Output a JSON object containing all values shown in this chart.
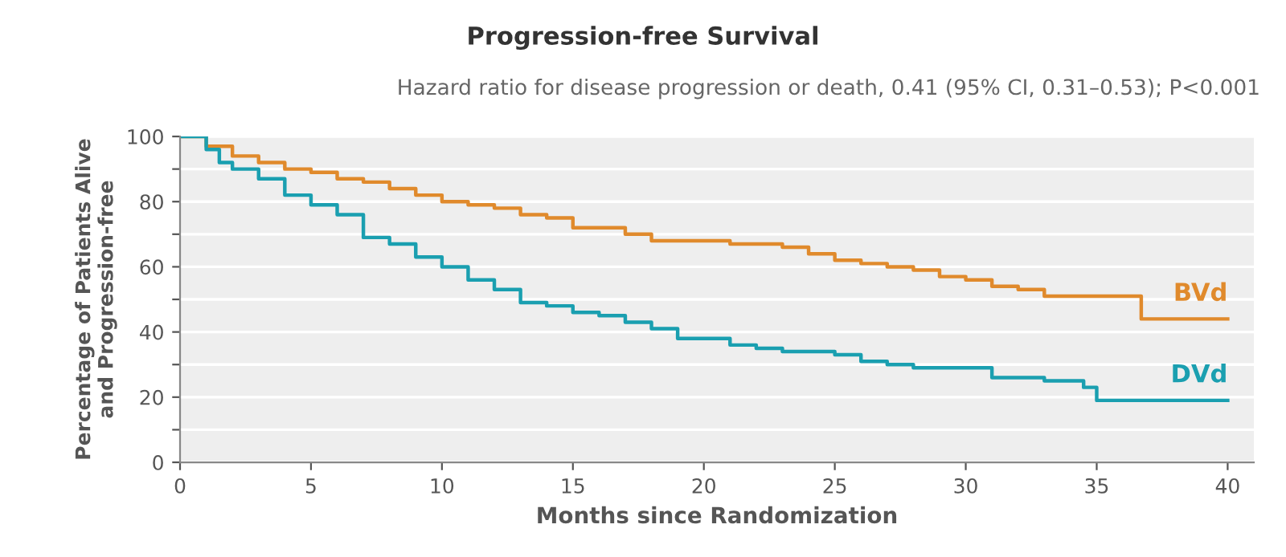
{
  "chart_data": {
    "type": "step",
    "title": "Progression-free Survival",
    "subtitle": "Hazard ratio for disease progression or death, 0.41 (95% CI, 0.31–0.53); P<0.001",
    "xlabel": "Months since Randomization",
    "ylabel": "Percentage of Patients Alive\nand Progression-free",
    "xlim": [
      0,
      41
    ],
    "xticks": [
      0,
      5,
      10,
      15,
      20,
      25,
      30,
      35,
      40
    ],
    "ylim": [
      0,
      100
    ],
    "yticks": [
      0,
      {
        "value": 10,
        "label": null
      },
      20,
      {
        "value": 30,
        "label": null
      },
      40,
      {
        "value": 50,
        "label": null
      },
      60,
      {
        "value": 70,
        "label": null
      },
      80,
      {
        "value": 90,
        "label": null
      },
      100
    ],
    "grid": "y",
    "legend": false,
    "line_style": "solid",
    "series": [
      {
        "name": "BVd",
        "color": "#e08a2c",
        "x": [
          0,
          1,
          2,
          3,
          4,
          5,
          6,
          7,
          8,
          9,
          10,
          11,
          12,
          13,
          14,
          15,
          16,
          17,
          18,
          19,
          20,
          21,
          22,
          23,
          24,
          25,
          26,
          27,
          28,
          29,
          30,
          31,
          32,
          33,
          34,
          35,
          36.7,
          38,
          40
        ],
        "values": [
          100,
          97,
          94,
          92,
          90,
          89,
          87,
          86,
          84,
          82,
          80,
          79,
          78,
          76,
          75,
          72,
          72,
          70,
          68,
          68,
          68,
          67,
          67,
          66,
          64,
          62,
          61,
          60,
          59,
          57,
          56,
          54,
          53,
          51,
          51,
          51,
          44,
          44,
          44
        ]
      },
      {
        "name": "DVd",
        "color": "#1a9fb0",
        "x": [
          0,
          1,
          1.5,
          2,
          3,
          4,
          5,
          6,
          7,
          8,
          9,
          10,
          11,
          12,
          13,
          14,
          15,
          16,
          17,
          18,
          19,
          20,
          21,
          22,
          23,
          24,
          25,
          26,
          27,
          28,
          29,
          30,
          31,
          32,
          33,
          34,
          34.5,
          35,
          40
        ],
        "values": [
          100,
          96,
          92,
          90,
          87,
          82,
          79,
          76,
          69,
          67,
          63,
          60,
          56,
          53,
          49,
          48,
          46,
          45,
          43,
          41,
          38,
          38,
          36,
          35,
          34,
          34,
          33,
          31,
          30,
          29,
          29,
          29,
          26,
          26,
          25,
          25,
          23,
          19,
          19
        ]
      }
    ]
  }
}
